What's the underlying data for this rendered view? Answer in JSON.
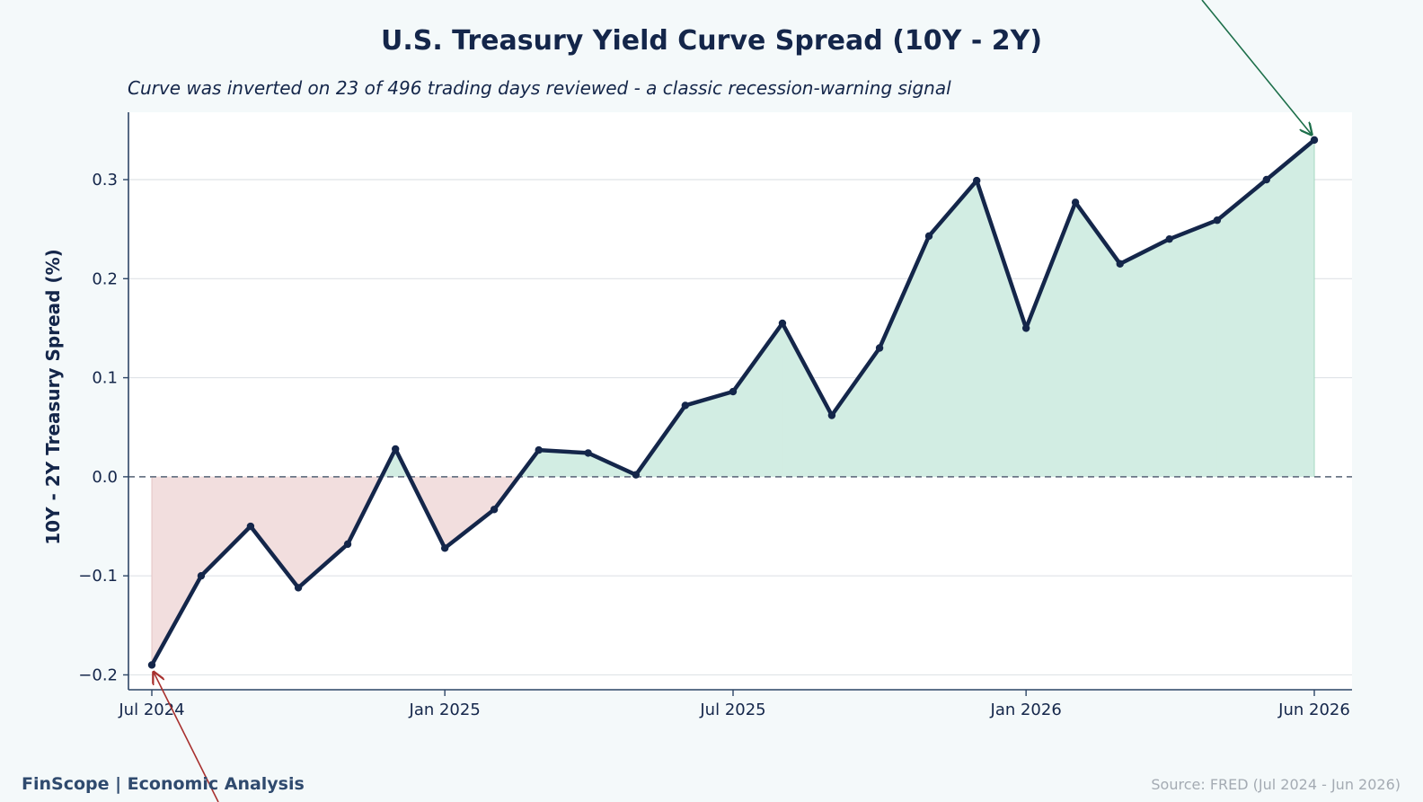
{
  "chart_data": {
    "type": "line",
    "title": "U.S. Treasury Yield Curve Spread (10Y - 2Y)",
    "subtitle": "Curve was inverted on 23 of 496 trading days reviewed - a classic recession-warning signal",
    "xlabel": "",
    "ylabel": "10Y - 2Y Treasury Spread (%)",
    "x_ticks": [
      "Jul 2024",
      "Jan 2025",
      "Jul 2025",
      "Jan 2026",
      "Jun 2026"
    ],
    "y_ticks": [
      "0.3",
      "0.2",
      "0.1",
      "0.0",
      "−0.1",
      "−0.2"
    ],
    "y_tick_values": [
      0.3,
      0.2,
      0.1,
      0.0,
      -0.1,
      -0.2
    ],
    "ylim": [
      -0.215,
      0.368
    ],
    "zero_reference_line": true,
    "grid": "horizontal",
    "fill_positive_color": "#d2ede3",
    "fill_negative_color": "#f2dede",
    "line_color": "#14264a",
    "series": [
      {
        "x": [
          "2024-07-01",
          "2024-08-01",
          "2024-09-01",
          "2024-10-01",
          "2024-11-01",
          "2024-12-01",
          "2025-01-01",
          "2025-02-01",
          "2025-03-01",
          "2025-04-01",
          "2025-05-01",
          "2025-06-01",
          "2025-07-01",
          "2025-08-01",
          "2025-09-01",
          "2025-10-01",
          "2025-11-01",
          "2025-12-01",
          "2026-01-01",
          "2026-02-01",
          "2026-03-01",
          "2026-04-01",
          "2026-05-01",
          "2026-06-01",
          "2026-07-01"
        ],
        "values": [
          -0.19,
          -0.1,
          -0.05,
          -0.112,
          -0.068,
          0.028,
          -0.072,
          -0.033,
          0.027,
          0.024,
          0.002,
          0.072,
          0.086,
          0.155,
          0.062,
          0.13,
          0.243,
          0.299,
          0.15,
          0.277,
          0.215,
          0.24,
          0.259,
          0.3,
          0.34
        ]
      }
    ]
  },
  "footer": {
    "brand": "FinScope | Economic Analysis",
    "source": "Source: FRED (Jul 2024 - Jun 2026)"
  },
  "colors": {
    "page_background": "#f4f9fa",
    "plot_background": "#ffffff",
    "annotation_start_arrow": "#a8302e",
    "annotation_end_arrow": "#1d6f4a"
  }
}
